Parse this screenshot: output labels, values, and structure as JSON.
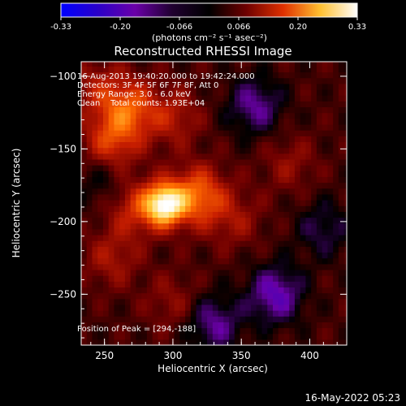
{
  "chart_data": {
    "type": "heatmap",
    "title": "Reconstructed RHESSI Image",
    "xlabel": "Heliocentric X (arcsec)",
    "ylabel": "Heliocentric Y (arcsec)",
    "xlim": [
      233,
      427
    ],
    "ylim": [
      -285,
      -90
    ],
    "x_ticks": [
      250,
      300,
      350,
      400
    ],
    "y_ticks": [
      -100,
      -150,
      -200,
      -250
    ],
    "colorbar": {
      "ticks": [
        "-0.33",
        "-0.20",
        "-0.066",
        "0.066",
        "0.20",
        "0.33"
      ],
      "min": -0.33,
      "max": 0.33,
      "unit_label": "(photons cm⁻² s⁻¹ asec⁻²)",
      "colors": [
        "#0000ff",
        "#2a00c8",
        "#6a00a8",
        "#000000",
        "#6e0000",
        "#c81e00",
        "#ff6a00",
        "#ffd040",
        "#ffffff"
      ]
    },
    "annotations": [
      "16-Aug-2013 19:40:20.000 to 19:42:24.000",
      "Detectors: 3F 4F 5F 6F 7F 8F, Att 0",
      "Energy Range: 3.0 - 6.0 keV",
      "Clean    Total counts: 1.93E+04"
    ],
    "peak_label": "Position of Peak = [294,-188]",
    "sources": [
      {
        "x": 294,
        "y": -188,
        "value": 0.33
      },
      {
        "x": 318,
        "y": -182,
        "value": 0.19
      },
      {
        "x": 272,
        "y": -190,
        "value": 0.12
      },
      {
        "x": 255,
        "y": -145,
        "value": 0.14
      },
      {
        "x": 268,
        "y": -122,
        "value": 0.16
      },
      {
        "x": 300,
        "y": -128,
        "value": 0.09
      },
      {
        "x": 245,
        "y": -108,
        "value": 0.08
      },
      {
        "x": 345,
        "y": -198,
        "value": 0.07
      },
      {
        "x": 385,
        "y": -160,
        "value": 0.06
      },
      {
        "x": 255,
        "y": -225,
        "value": 0.08
      },
      {
        "x": 300,
        "y": -255,
        "value": 0.06
      },
      {
        "x": 360,
        "y": -120,
        "value": -0.12
      },
      {
        "x": 375,
        "y": -250,
        "value": -0.15
      },
      {
        "x": 330,
        "y": -270,
        "value": -0.12
      },
      {
        "x": 250,
        "y": -172,
        "value": -0.06
      },
      {
        "x": 410,
        "y": -205,
        "value": -0.08
      }
    ]
  },
  "footer": {
    "date": "16-May-2022 05:23"
  }
}
